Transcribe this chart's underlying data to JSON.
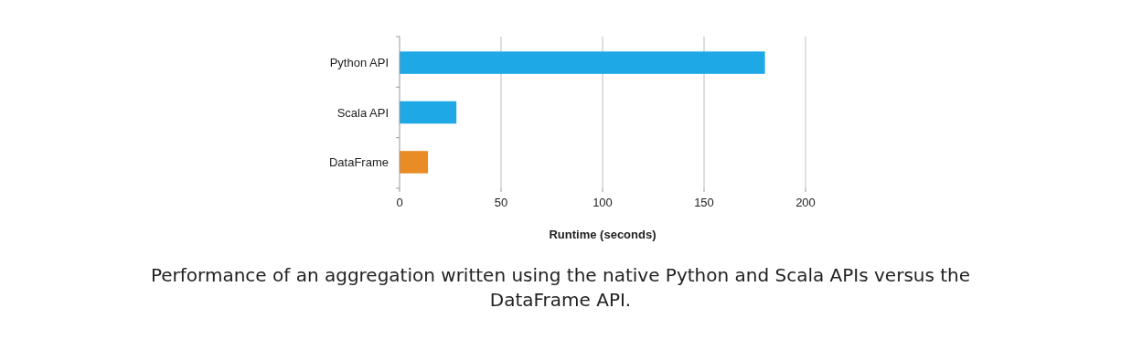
{
  "chart_data": {
    "type": "bar",
    "orientation": "horizontal",
    "xlabel": "Runtime (seconds)",
    "categories": [
      "Python API",
      "Scala API",
      "DataFrame"
    ],
    "values": [
      180,
      28,
      14
    ],
    "colors": [
      "#1ea8e6",
      "#1ea8e6",
      "#e98c25"
    ],
    "xlim": [
      0,
      200
    ],
    "xticks": [
      0,
      50,
      100,
      150,
      200
    ],
    "grid": "x",
    "annotations": [
      "Performance of an aggregation written using the native Python and Scala APIs versus the DataFrame API."
    ]
  }
}
